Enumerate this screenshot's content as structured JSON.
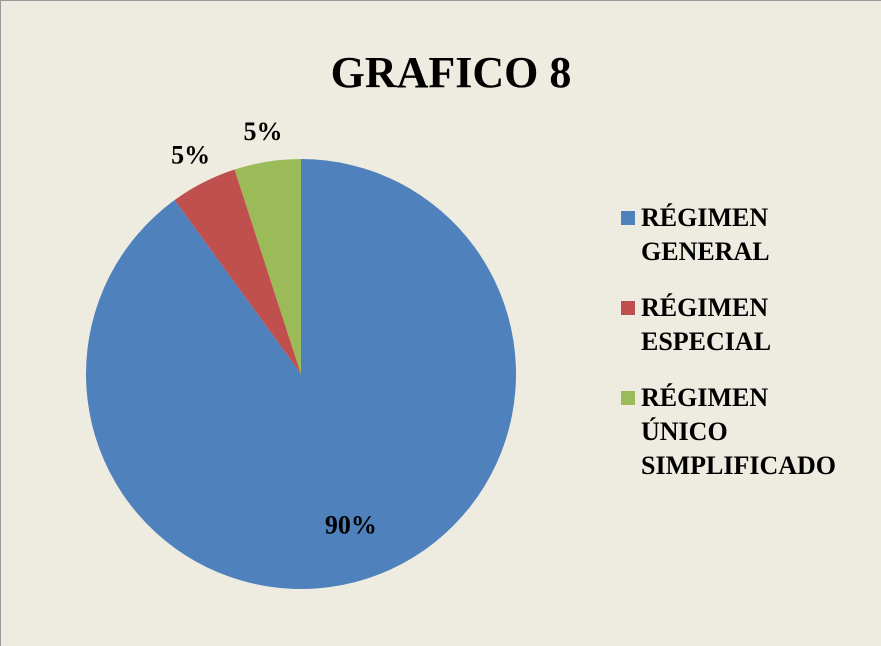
{
  "chart_data": {
    "type": "pie",
    "title": "GRAFICO 8",
    "categories": [
      "RÉGIMEN GENERAL",
      "RÉGIMEN ESPECIAL",
      "RÉGIMEN ÚNICO SIMPLIFICADO"
    ],
    "values": [
      90,
      5,
      5
    ],
    "value_labels": [
      "90%",
      "5%",
      "5%"
    ],
    "colors": [
      "#4f81bd",
      "#c0504d",
      "#9bbb59"
    ],
    "legend": "right"
  }
}
